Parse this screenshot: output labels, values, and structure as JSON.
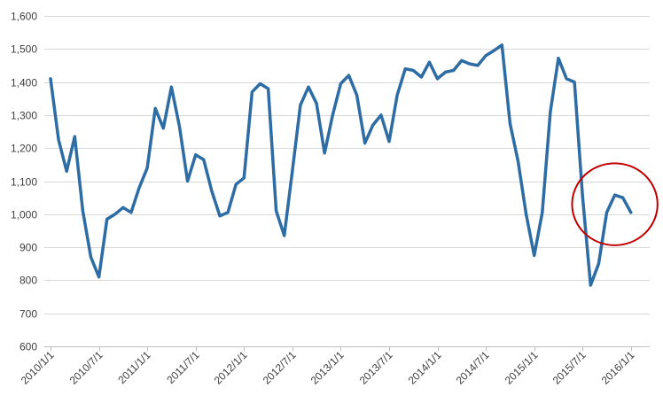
{
  "chart_data": {
    "type": "line",
    "title": "",
    "xlabel": "",
    "ylabel": "",
    "ylim": [
      600,
      1600
    ],
    "y_ticks": [
      600,
      700,
      800,
      900,
      1000,
      1100,
      1200,
      1300,
      1400,
      1500,
      1600
    ],
    "y_tick_labels": [
      "600",
      "700",
      "800",
      "900",
      "1,000",
      "1,100",
      "1,200",
      "1,300",
      "1,400",
      "1,500",
      "1,600"
    ],
    "x_range": [
      "2010/1/1",
      "2016/3/1"
    ],
    "x_tick_labels": [
      "2010/1/1",
      "2010/7/1",
      "2011/1/1",
      "2011/7/1",
      "2012/1/1",
      "2012/7/1",
      "2013/1/1",
      "2013/7/1",
      "2014/1/1",
      "2014/7/1",
      "2015/1/1",
      "2015/7/1",
      "2016/1/1"
    ],
    "grid": true,
    "legend": "none",
    "colors": {
      "line": "#2e6ca4",
      "grid": "#d9d9d9",
      "axis": "#bfbfbf",
      "highlight_circle": "#c00000"
    },
    "annotation": {
      "type": "circle",
      "around_x": [
        "2015/9/1",
        "2016/1/1"
      ],
      "around_y": 1030
    },
    "series": [
      {
        "x": [
          "2010/1/1",
          "2010/2/1",
          "2010/3/1",
          "2010/4/1",
          "2010/5/1",
          "2010/6/1",
          "2010/7/1",
          "2010/8/1",
          "2010/9/1",
          "2010/10/1",
          "2010/11/1",
          "2010/12/1",
          "2011/1/1",
          "2011/2/1",
          "2011/3/1",
          "2011/4/1",
          "2011/5/1",
          "2011/6/1",
          "2011/7/1",
          "2011/8/1",
          "2011/9/1",
          "2011/10/1",
          "2011/11/1",
          "2011/12/1",
          "2012/1/1",
          "2012/2/1",
          "2012/3/1",
          "2012/4/1",
          "2012/5/1",
          "2012/6/1",
          "2012/7/1",
          "2012/8/1",
          "2012/9/1",
          "2012/10/1",
          "2012/11/1",
          "2012/12/1",
          "2013/1/1",
          "2013/2/1",
          "2013/3/1",
          "2013/4/1",
          "2013/5/1",
          "2013/6/1",
          "2013/7/1",
          "2013/8/1",
          "2013/9/1",
          "2013/10/1",
          "2013/11/1",
          "2013/12/1",
          "2014/1/1",
          "2014/2/1",
          "2014/3/1",
          "2014/4/1",
          "2014/5/1",
          "2014/6/1",
          "2014/7/1",
          "2014/8/1",
          "2014/9/1",
          "2014/10/1",
          "2014/11/1",
          "2014/12/1",
          "2015/1/1",
          "2015/2/1",
          "2015/3/1",
          "2015/4/1",
          "2015/5/1",
          "2015/6/1",
          "2015/7/1",
          "2015/8/1",
          "2015/9/1",
          "2015/10/1",
          "2015/11/1",
          "2015/12/1",
          "2016/1/1"
        ],
        "values": [
          1410,
          1225,
          1130,
          1235,
          1010,
          870,
          810,
          985,
          1000,
          1020,
          1005,
          1080,
          1140,
          1320,
          1260,
          1385,
          1265,
          1100,
          1180,
          1165,
          1070,
          995,
          1005,
          1090,
          1110,
          1370,
          1395,
          1380,
          1010,
          935,
          1130,
          1330,
          1385,
          1335,
          1185,
          1300,
          1395,
          1420,
          1360,
          1215,
          1270,
          1300,
          1220,
          1360,
          1440,
          1435,
          1415,
          1460,
          1410,
          1430,
          1435,
          1465,
          1455,
          1450,
          1480,
          1495,
          1512,
          1275,
          1160,
          1000,
          875,
          1005,
          1310,
          1472,
          1410,
          1400,
          1055,
          785,
          850,
          1005,
          1058,
          1050,
          1005
        ]
      }
    ]
  }
}
